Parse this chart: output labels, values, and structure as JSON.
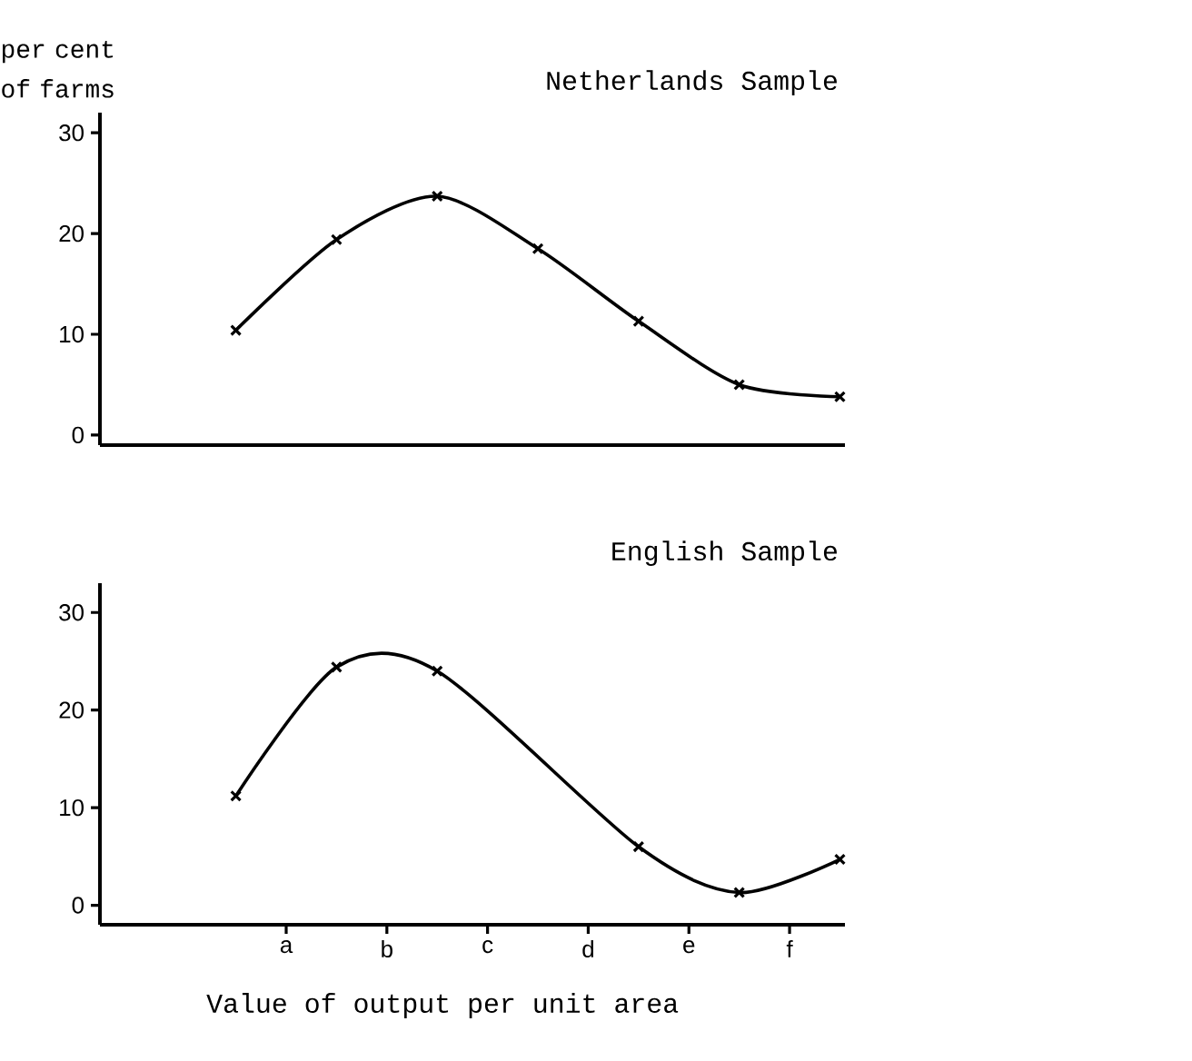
{
  "chart_data": [
    {
      "type": "line",
      "title": "Netherlands Sample",
      "ylabel": "per cent of farms",
      "categories": [
        null,
        null,
        null,
        null,
        null,
        null,
        null,
        null,
        null,
        null,
        null,
        null,
        null
      ],
      "values": [
        10.4,
        null,
        19.4,
        null,
        23.7,
        null,
        18.5,
        null,
        11.3,
        null,
        5,
        null,
        3.8
      ],
      "color": "#000000",
      "marker": "cross",
      "line_style": "solid",
      "ylim": [
        -1,
        32
      ],
      "yticks": [
        0,
        10,
        20,
        30
      ],
      "tick_labels": "y"
    },
    {
      "type": "line",
      "title": "English Sample",
      "xlabel": "Value of output per unit area",
      "categories": [
        null,
        "a",
        null,
        "b",
        null,
        "c",
        null,
        "d",
        null,
        "e",
        null,
        "f",
        null
      ],
      "values": [
        11.2,
        null,
        24.4,
        null,
        24,
        null,
        null,
        null,
        6,
        null,
        1.3,
        null,
        4.7
      ],
      "color": "#000000",
      "marker": "cross",
      "line_style": "solid",
      "ylim": [
        -2,
        33
      ],
      "yticks": [
        0,
        10,
        20,
        30
      ]
    }
  ]
}
